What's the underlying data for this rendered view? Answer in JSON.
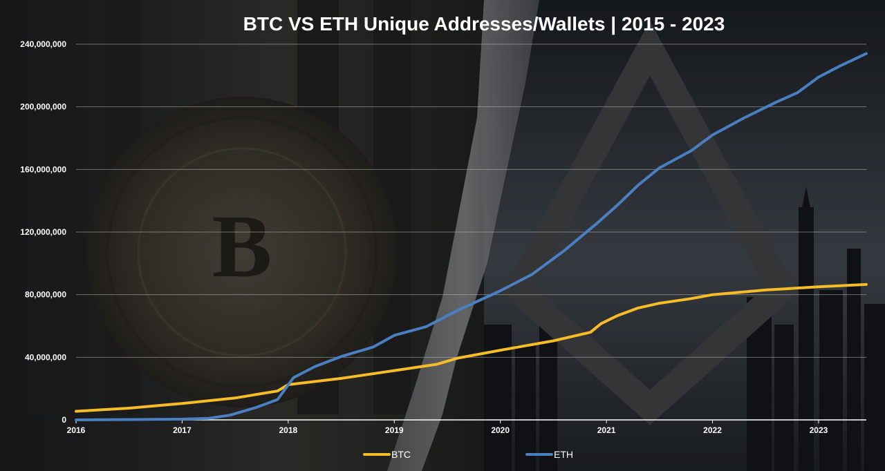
{
  "chart_data": {
    "type": "line",
    "title": "BTC VS ETH Unique Addresses/Wallets | 2015 - 2023",
    "xlabel": "",
    "ylabel": "",
    "x_tick_labels": [
      "2016",
      "2017",
      "2018",
      "2019",
      "2020",
      "2021",
      "2022",
      "2023"
    ],
    "y_tick_labels": [
      "0",
      "40,000,000",
      "80,000,000",
      "120,000,000",
      "160,000,000",
      "200,000,000",
      "240,000,000"
    ],
    "x_range": [
      2016.0,
      2023.45
    ],
    "ylim": [
      0,
      240000000
    ],
    "grid": true,
    "legend_position": "bottom",
    "series": [
      {
        "name": "BTC",
        "color": "#f6bd29",
        "points": [
          [
            2016.0,
            5500000
          ],
          [
            2016.5,
            7500000
          ],
          [
            2017.0,
            10500000
          ],
          [
            2017.5,
            14000000
          ],
          [
            2017.9,
            18500000
          ],
          [
            2018.0,
            22500000
          ],
          [
            2018.5,
            26500000
          ],
          [
            2019.0,
            31500000
          ],
          [
            2019.4,
            35500000
          ],
          [
            2019.6,
            39500000
          ],
          [
            2020.0,
            44500000
          ],
          [
            2020.5,
            50500000
          ],
          [
            2020.85,
            56000000
          ],
          [
            2020.95,
            61500000
          ],
          [
            2021.1,
            66500000
          ],
          [
            2021.3,
            71500000
          ],
          [
            2021.5,
            74500000
          ],
          [
            2021.8,
            77500000
          ],
          [
            2022.0,
            80000000
          ],
          [
            2022.5,
            83000000
          ],
          [
            2023.0,
            85000000
          ],
          [
            2023.45,
            86500000
          ]
        ]
      },
      {
        "name": "ETH",
        "color": "#4a7fc0",
        "points": [
          [
            2016.0,
            0
          ],
          [
            2016.5,
            200000
          ],
          [
            2017.0,
            500000
          ],
          [
            2017.25,
            1000000
          ],
          [
            2017.45,
            3000000
          ],
          [
            2017.7,
            8000000
          ],
          [
            2017.9,
            13000000
          ],
          [
            2018.05,
            27000000
          ],
          [
            2018.25,
            34000000
          ],
          [
            2018.5,
            40500000
          ],
          [
            2018.8,
            46500000
          ],
          [
            2019.0,
            54000000
          ],
          [
            2019.3,
            59500000
          ],
          [
            2019.6,
            70000000
          ],
          [
            2020.0,
            82500000
          ],
          [
            2020.3,
            93000000
          ],
          [
            2020.6,
            108000000
          ],
          [
            2020.9,
            125000000
          ],
          [
            2021.1,
            137000000
          ],
          [
            2021.3,
            150000000
          ],
          [
            2021.5,
            161000000
          ],
          [
            2021.8,
            172000000
          ],
          [
            2022.0,
            182000000
          ],
          [
            2022.3,
            193000000
          ],
          [
            2022.6,
            203000000
          ],
          [
            2022.8,
            209000000
          ],
          [
            2023.0,
            219000000
          ],
          [
            2023.2,
            226000000
          ],
          [
            2023.45,
            234000000
          ]
        ]
      }
    ]
  }
}
